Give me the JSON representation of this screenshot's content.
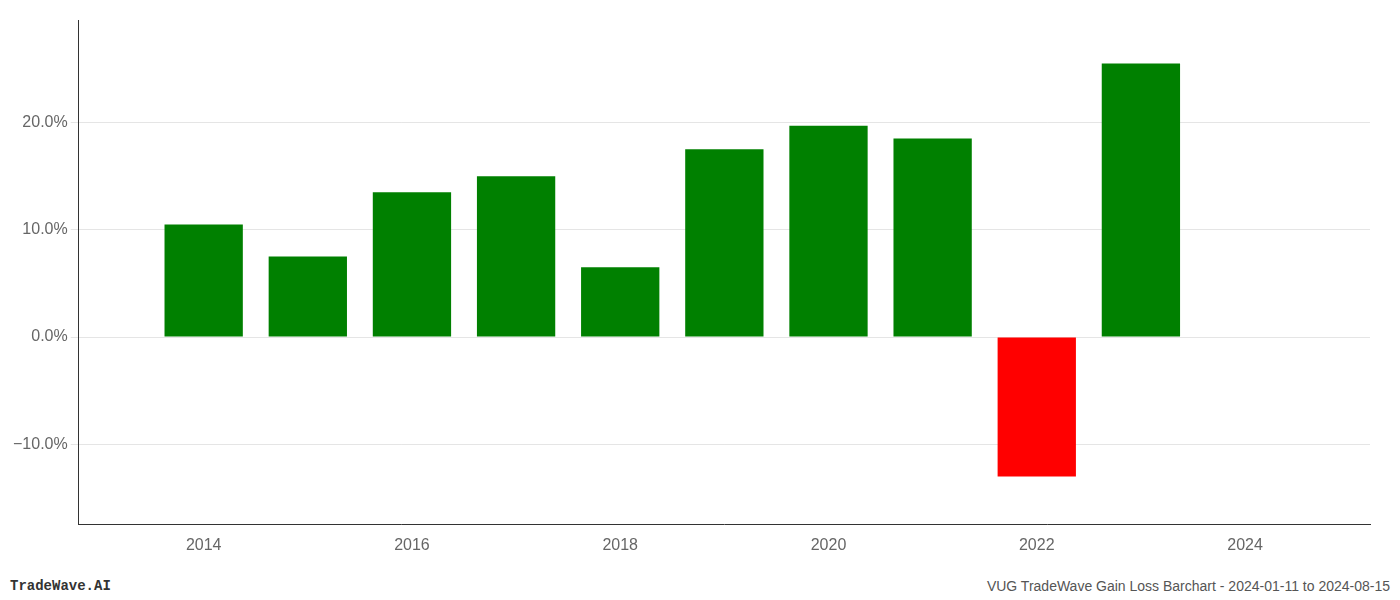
{
  "chart_data": {
    "type": "bar",
    "x": [
      2014,
      2015,
      2016,
      2017,
      2018,
      2019,
      2020,
      2021,
      2022,
      2023
    ],
    "values": [
      0.105,
      0.075,
      0.135,
      0.15,
      0.065,
      0.175,
      0.197,
      0.185,
      -0.13,
      0.255
    ],
    "colors": [
      "#008000",
      "#008000",
      "#008000",
      "#008000",
      "#008000",
      "#008000",
      "#008000",
      "#008000",
      "#ff0000",
      "#008000"
    ],
    "xlim": [
      2012.8,
      2025.2
    ],
    "xticks": [
      2014,
      2016,
      2018,
      2020,
      2022,
      2024
    ],
    "ylim": [
      -0.175,
      0.295
    ],
    "yticks": [
      {
        "value": -0.1,
        "label": "−10.0%"
      },
      {
        "value": 0.0,
        "label": "0.0%"
      },
      {
        "value": 0.1,
        "label": "10.0%"
      },
      {
        "value": 0.2,
        "label": "20.0%"
      }
    ],
    "grid": "y",
    "annotations": [
      "TradeWave.AI",
      "VUG TradeWave Gain Loss Barchart - 2024-01-11 to 2024-08-15"
    ]
  }
}
